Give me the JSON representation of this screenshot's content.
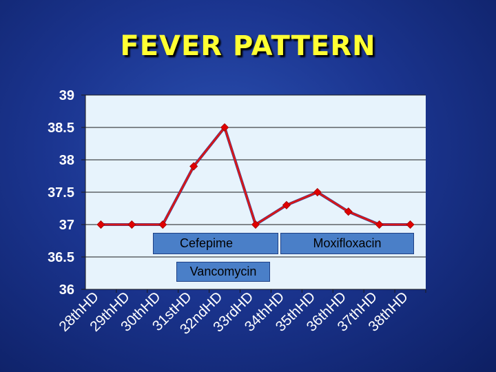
{
  "slide": {
    "title": "FEVER PATTERN"
  },
  "chart_data": {
    "type": "line",
    "categories": [
      "28thHD",
      "29thHD",
      "30thHD",
      "31stHD",
      "32ndHD",
      "33rdHD",
      "34thHD",
      "35thHD",
      "36thHD",
      "37thHD",
      "38thHD"
    ],
    "series": [
      {
        "values": [
          37,
          37,
          37,
          37.9,
          38.5,
          37,
          37.3,
          37.5,
          37.2,
          37,
          37
        ]
      }
    ],
    "ylim": [
      36,
      39
    ],
    "yticks": [
      "36",
      "36.5",
      "37",
      "37.5",
      "38",
      "38.5",
      "39"
    ],
    "grid": "horizontal",
    "colors": {
      "line": "#d81818",
      "marker": "#e00000",
      "plot_bg": "#e7f3fc",
      "gridline": "#1a1a1a"
    },
    "annotations": [
      "Cefepime",
      "Moxifloxacin",
      "Vancomycin"
    ]
  }
}
